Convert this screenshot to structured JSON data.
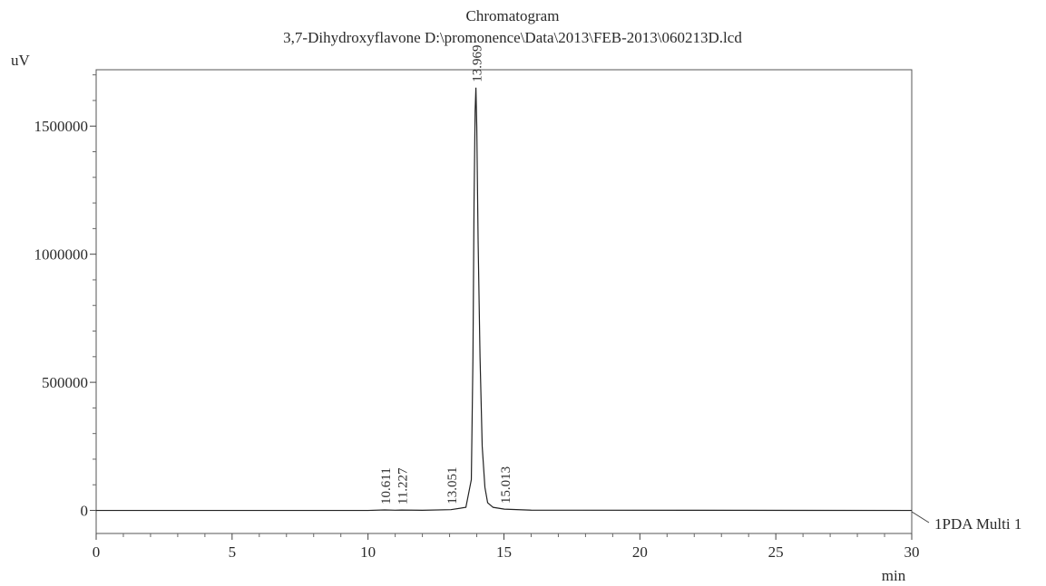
{
  "chart_data": {
    "type": "line",
    "title": "Chromatogram",
    "subtitle": "3,7-Dihydroxyflavone D:\\promonence\\Data\\2013\\FEB-2013\\060213D.lcd",
    "xlabel": "min",
    "ylabel": "uV",
    "xlim": [
      0,
      30
    ],
    "ylim": [
      -90000,
      1720000
    ],
    "x_ticks": [
      0,
      5,
      10,
      15,
      20,
      25,
      30
    ],
    "x_tick_labels": [
      "0",
      "5",
      "10",
      "15",
      "20",
      "25",
      "30"
    ],
    "y_ticks": [
      0,
      500000,
      1000000,
      1500000
    ],
    "y_tick_labels": [
      "0",
      "500000",
      "1000000",
      "1500000"
    ],
    "grid": false,
    "series": [
      {
        "name": "1PDA Multi 1",
        "x": [
          0,
          10.0,
          10.611,
          11.0,
          11.227,
          12.0,
          13.051,
          13.6,
          13.8,
          13.86,
          13.9,
          13.94,
          13.969,
          14.0,
          14.05,
          14.12,
          14.2,
          14.3,
          14.4,
          14.6,
          15.013,
          16.0,
          30
        ],
        "y": [
          0,
          0,
          2000,
          800,
          1500,
          500,
          3000,
          12000,
          120000,
          600000,
          1200000,
          1560000,
          1650000,
          1500000,
          1050000,
          600000,
          250000,
          90000,
          30000,
          12000,
          5000,
          1000,
          0
        ]
      }
    ],
    "peak_labels": [
      "10.611",
      "11.227",
      "13.051",
      "13.969",
      "15.013"
    ],
    "peak_x": [
      10.611,
      11.227,
      13.051,
      13.969,
      15.013
    ],
    "peak_y": [
      2000,
      1500,
      3000,
      1650000,
      5000
    ],
    "legend": {
      "label": "1PDA Multi 1",
      "placement": "right"
    }
  }
}
